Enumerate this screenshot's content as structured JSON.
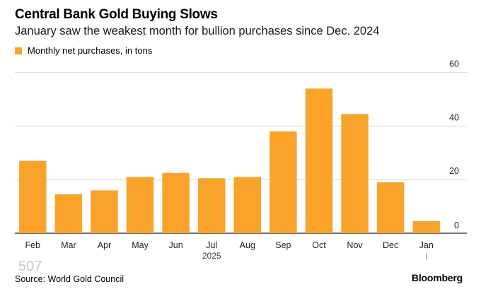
{
  "title": "Central Bank Gold Buying Slows",
  "subtitle": "January saw the weakest month for bullion purchases since Dec. 2024",
  "legend": {
    "label": "Monthly net purchases, in tons"
  },
  "watermark": "507",
  "source": "Source: World Gold Council",
  "brand": "Bloomberg",
  "colors": {
    "bar": "#f9a32b",
    "grid": "#d9d9d9",
    "axis": "#222222"
  },
  "chart_data": {
    "type": "bar",
    "categories": [
      "Feb",
      "Mar",
      "Apr",
      "May",
      "Jun",
      "Jul",
      "Aug",
      "Sep",
      "Oct",
      "Nov",
      "Dec",
      "Jan"
    ],
    "values": [
      27,
      14.5,
      16,
      21,
      22.5,
      20.5,
      21,
      38,
      54,
      44.5,
      19,
      4.5
    ],
    "year_label": "2025",
    "ylim": [
      0,
      62
    ],
    "yticks": [
      0,
      20,
      40,
      60
    ],
    "xlabel": "",
    "ylabel": "",
    "series": [
      {
        "name": "Monthly net purchases, in tons"
      }
    ]
  }
}
